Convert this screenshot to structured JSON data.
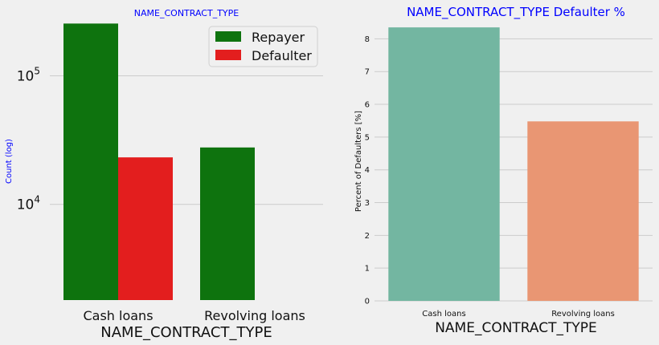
{
  "chart_data": [
    {
      "type": "bar",
      "title": "NAME_CONTRACT_TYPE",
      "xlabel": "NAME_CONTRACT_TYPE",
      "ylabel": "Count (log)",
      "yscale": "log",
      "ylim": [
        1800,
        260000
      ],
      "yticks": [
        10000,
        100000
      ],
      "ytick_labels": [
        {
          "base": "10",
          "exp": "4"
        },
        {
          "base": "10",
          "exp": "5"
        }
      ],
      "categories": [
        "Cash loans",
        "Revolving loans"
      ],
      "series": [
        {
          "name": "Repayer",
          "color": "#0e730e",
          "values": [
            255000,
            27700
          ]
        },
        {
          "name": "Defaulter",
          "color": "#e31e1e",
          "values": [
            23200,
            1600
          ]
        }
      ],
      "legend_position": "top-right",
      "grid": "horizontal",
      "title_color": "#0000ff",
      "ylabel_color": "#0000ff"
    },
    {
      "type": "bar",
      "title": "NAME_CONTRACT_TYPE Defaulter %",
      "xlabel": "NAME_CONTRACT_TYPE",
      "ylabel": "Percent of Defaulters [%]",
      "ylim": [
        0,
        8.5
      ],
      "yticks": [
        0,
        1,
        2,
        3,
        4,
        5,
        6,
        7,
        8
      ],
      "categories": [
        "Cash loans",
        "Revolving loans"
      ],
      "values": [
        8.35,
        5.48
      ],
      "colors": [
        "#73b6a1",
        "#e99673"
      ],
      "grid": "horizontal",
      "title_color": "#0000ff"
    }
  ]
}
